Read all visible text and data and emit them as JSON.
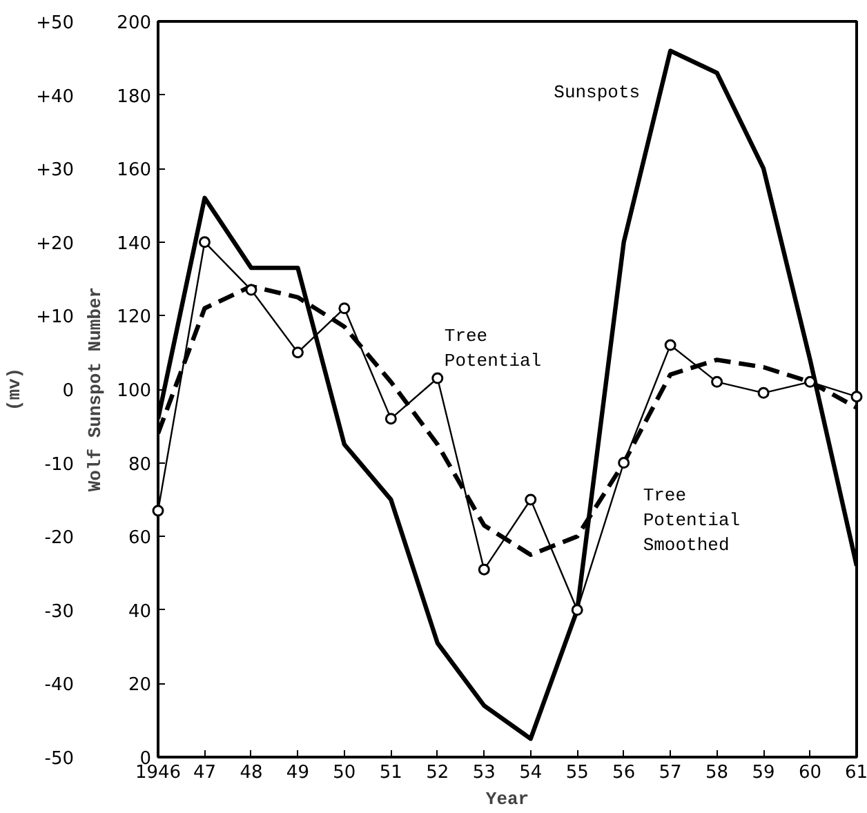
{
  "chart_data": {
    "type": "line",
    "xlabel": "Year",
    "ylabel": "Wolf Sunspot Number",
    "y2label": "(mv)",
    "x": [
      1946,
      1947,
      1948,
      1949,
      1950,
      1951,
      1952,
      1953,
      1954,
      1955,
      1956,
      1957,
      1958,
      1959,
      1960,
      1961
    ],
    "xlim": [
      1946,
      1961
    ],
    "xticks": [
      {
        "value": 1946,
        "label": "1946"
      },
      {
        "value": 1947,
        "label": "47"
      },
      {
        "value": 1948,
        "label": "48"
      },
      {
        "value": 1949,
        "label": "49"
      },
      {
        "value": 1950,
        "label": "50"
      },
      {
        "value": 1951,
        "label": "51"
      },
      {
        "value": 1952,
        "label": "52"
      },
      {
        "value": 1953,
        "label": "53"
      },
      {
        "value": 1954,
        "label": "54"
      },
      {
        "value": 1955,
        "label": "55"
      },
      {
        "value": 1956,
        "label": "56"
      },
      {
        "value": 1957,
        "label": "57"
      },
      {
        "value": 1958,
        "label": "58"
      },
      {
        "value": 1959,
        "label": "59"
      },
      {
        "value": 1960,
        "label": "60"
      },
      {
        "value": 1961,
        "label": "61"
      }
    ],
    "ylim": [
      0,
      200
    ],
    "yticks": [
      0,
      20,
      40,
      60,
      80,
      100,
      120,
      140,
      160,
      180,
      200
    ],
    "y2lim": [
      -50,
      50
    ],
    "y2ticks": [
      -50,
      -40,
      -30,
      -20,
      -10,
      0,
      {
        "value": 10,
        "label": "+10"
      },
      {
        "value": 20,
        "label": "+20"
      },
      {
        "value": 30,
        "label": "+30"
      },
      {
        "value": 40,
        "label": "+40"
      },
      {
        "value": 50,
        "label": "+50"
      }
    ],
    "grid": false,
    "series": [
      {
        "name": "Sunspots",
        "color": "#000000",
        "marker": "none",
        "line_style": "solid",
        "values": [
          92,
          152,
          133,
          133,
          85,
          70,
          31,
          14,
          5,
          40,
          140,
          192,
          186,
          160,
          108,
          52
        ]
      },
      {
        "name": "Tree Potential",
        "color": "#000000",
        "marker": "circle",
        "line_style": "solid",
        "axis": "y2",
        "values": [
          -16.5,
          20,
          13.5,
          5,
          11,
          -4,
          1.5,
          -24.5,
          -15,
          -30,
          -10,
          6,
          1,
          -0.5,
          1,
          -1
        ]
      },
      {
        "name": "Tree Potential Smoothed",
        "color": "#000000",
        "marker": "none",
        "line_style": "dashed",
        "axis": "y2",
        "values": [
          -6,
          11,
          14,
          12.5,
          8.5,
          1,
          -7.5,
          -18.5,
          -22.5,
          -20,
          -10,
          2,
          4,
          3,
          1,
          -2.5
        ]
      }
    ]
  }
}
